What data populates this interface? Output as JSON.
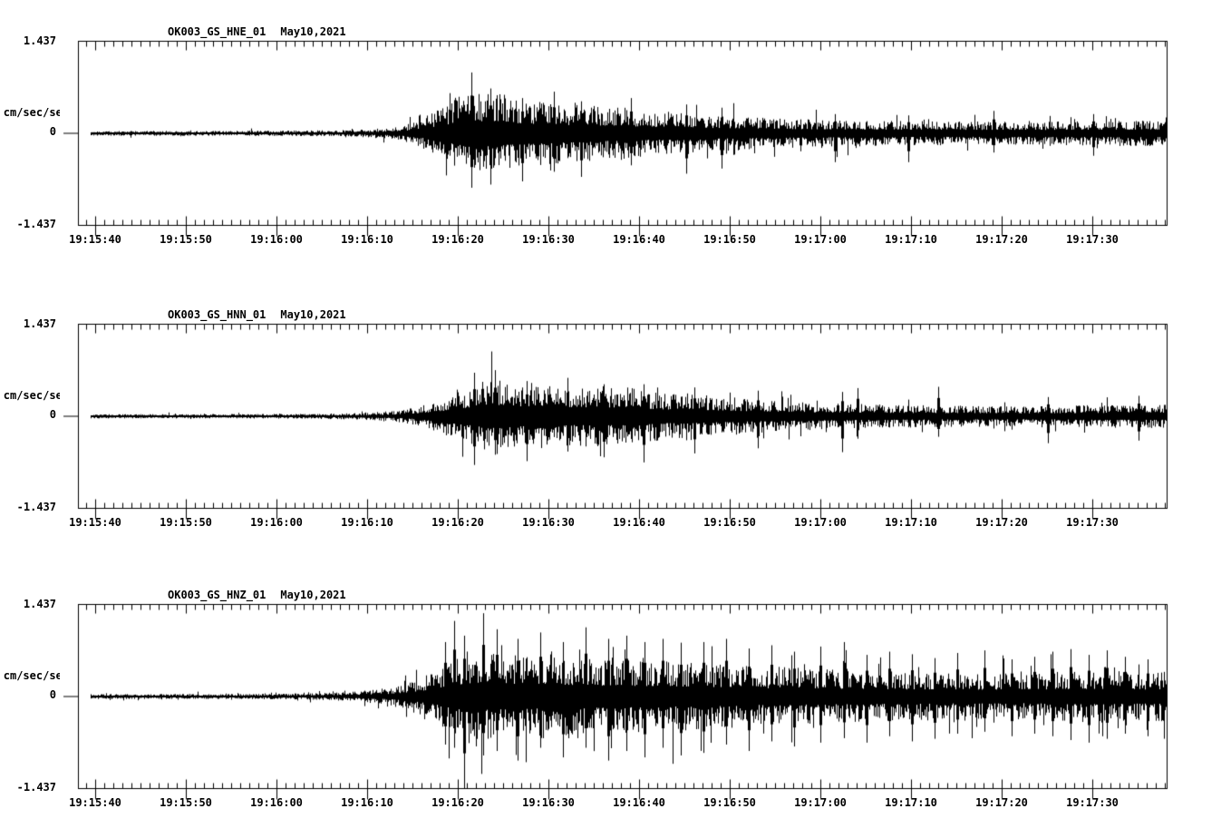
{
  "page": {
    "background": "#ffffff",
    "trace_color": "#000000"
  },
  "chart_data": [
    {
      "type": "line",
      "channel": "OK003_GS_HNE_01",
      "date": "May10,2021",
      "ylabel": "cm/sec/sec",
      "ylim": [
        -1.437,
        1.437
      ],
      "ytick_labels": {
        "top": "1.437",
        "zero": "0",
        "bottom": "-1.437"
      },
      "layout": {
        "grid": false,
        "minor_tick_interval_sec": 1,
        "major_tick_interval_sec": 10,
        "duration_sec": 120.1
      },
      "x_ticks": [
        {
          "sec": 1.9,
          "label": "19:15:40"
        },
        {
          "sec": 11.9,
          "label": "19:15:50"
        },
        {
          "sec": 21.9,
          "label": "19:16:00"
        },
        {
          "sec": 31.9,
          "label": "19:16:10"
        },
        {
          "sec": 41.9,
          "label": "19:16:20"
        },
        {
          "sec": 51.9,
          "label": "19:16:30"
        },
        {
          "sec": 61.9,
          "label": "19:16:40"
        },
        {
          "sec": 71.9,
          "label": "19:16:50"
        },
        {
          "sec": 81.9,
          "label": "19:17:00"
        },
        {
          "sec": 91.9,
          "label": "19:17:10"
        },
        {
          "sec": 101.9,
          "label": "19:17:20"
        },
        {
          "sec": 111.9,
          "label": "19:17:30"
        }
      ],
      "trace": {
        "start_sec": 1.4,
        "seed": 101,
        "spikiness": 0.045,
        "envelope": [
          [
            1.4,
            0.035
          ],
          [
            15,
            0.035
          ],
          [
            25,
            0.04
          ],
          [
            29,
            0.045
          ],
          [
            32,
            0.06
          ],
          [
            34,
            0.08
          ],
          [
            36,
            0.12
          ],
          [
            38,
            0.22
          ],
          [
            40,
            0.35
          ],
          [
            41.5,
            0.5
          ],
          [
            43,
            0.62
          ],
          [
            44.5,
            0.55
          ],
          [
            46,
            0.6
          ],
          [
            48,
            0.5
          ],
          [
            50,
            0.45
          ],
          [
            52,
            0.48
          ],
          [
            54,
            0.4
          ],
          [
            56,
            0.42
          ],
          [
            58,
            0.36
          ],
          [
            60,
            0.38
          ],
          [
            62,
            0.32
          ],
          [
            64,
            0.3
          ],
          [
            66,
            0.32
          ],
          [
            68,
            0.28
          ],
          [
            70,
            0.26
          ],
          [
            73,
            0.24
          ],
          [
            76,
            0.22
          ],
          [
            80,
            0.2
          ],
          [
            85,
            0.19
          ],
          [
            90,
            0.18
          ],
          [
            95,
            0.17
          ],
          [
            100,
            0.17
          ],
          [
            105,
            0.16
          ],
          [
            110,
            0.17
          ],
          [
            115,
            0.18
          ],
          [
            120,
            0.18
          ]
        ],
        "spikes": [
          [
            43.4,
            0.95,
            0.85
          ],
          [
            45.5,
            0.7,
            0.8
          ],
          [
            49,
            0.55,
            0.75
          ],
          [
            52.5,
            0.65,
            0.6
          ],
          [
            55.5,
            0.5,
            0.68
          ],
          [
            61,
            0.55,
            0.5
          ],
          [
            67.1,
            0.45,
            0.63
          ],
          [
            71,
            0.4,
            0.55
          ],
          [
            83.5,
            0.3,
            0.45
          ],
          [
            91.6,
            0.28,
            0.45
          ],
          [
            101,
            0.35,
            0.3
          ],
          [
            112,
            0.3,
            0.35
          ]
        ]
      }
    },
    {
      "type": "line",
      "channel": "OK003_GS_HNN_01",
      "date": "May10,2021",
      "ylabel": "cm/sec/sec",
      "ylim": [
        -1.437,
        1.437
      ],
      "ytick_labels": {
        "top": "1.437",
        "zero": "0",
        "bottom": "-1.437"
      },
      "layout": {
        "grid": false,
        "minor_tick_interval_sec": 1,
        "major_tick_interval_sec": 10,
        "duration_sec": 120.1
      },
      "x_ticks": [
        {
          "sec": 1.9,
          "label": "19:15:40"
        },
        {
          "sec": 11.9,
          "label": "19:15:50"
        },
        {
          "sec": 21.9,
          "label": "19:16:00"
        },
        {
          "sec": 31.9,
          "label": "19:16:10"
        },
        {
          "sec": 41.9,
          "label": "19:16:20"
        },
        {
          "sec": 51.9,
          "label": "19:16:30"
        },
        {
          "sec": 61.9,
          "label": "19:16:40"
        },
        {
          "sec": 71.9,
          "label": "19:16:50"
        },
        {
          "sec": 81.9,
          "label": "19:17:00"
        },
        {
          "sec": 91.9,
          "label": "19:17:10"
        },
        {
          "sec": 101.9,
          "label": "19:17:20"
        },
        {
          "sec": 111.9,
          "label": "19:17:30"
        }
      ],
      "trace": {
        "start_sec": 1.4,
        "seed": 202,
        "spikiness": 0.045,
        "envelope": [
          [
            1.4,
            0.03
          ],
          [
            15,
            0.03
          ],
          [
            25,
            0.035
          ],
          [
            30,
            0.045
          ],
          [
            33,
            0.06
          ],
          [
            35,
            0.08
          ],
          [
            37,
            0.12
          ],
          [
            39,
            0.2
          ],
          [
            41,
            0.3
          ],
          [
            43,
            0.42
          ],
          [
            45,
            0.52
          ],
          [
            47,
            0.55
          ],
          [
            49,
            0.48
          ],
          [
            51,
            0.52
          ],
          [
            53,
            0.45
          ],
          [
            55,
            0.42
          ],
          [
            57,
            0.45
          ],
          [
            59,
            0.4
          ],
          [
            61,
            0.42
          ],
          [
            63,
            0.36
          ],
          [
            65,
            0.33
          ],
          [
            67,
            0.36
          ],
          [
            69,
            0.3
          ],
          [
            71,
            0.28
          ],
          [
            74,
            0.25
          ],
          [
            77,
            0.22
          ],
          [
            80,
            0.2
          ],
          [
            84,
            0.18
          ],
          [
            88,
            0.17
          ],
          [
            92,
            0.16
          ],
          [
            96,
            0.15
          ],
          [
            100,
            0.15
          ],
          [
            104,
            0.14
          ],
          [
            108,
            0.15
          ],
          [
            112,
            0.16
          ],
          [
            116,
            0.17
          ],
          [
            120,
            0.17
          ]
        ],
        "spikes": [
          [
            43.7,
            0.68,
            0.76
          ],
          [
            46,
            0.72,
            0.6
          ],
          [
            49.5,
            0.55,
            0.7
          ],
          [
            54,
            0.6,
            0.55
          ],
          [
            58,
            0.5,
            0.64
          ],
          [
            62.4,
            0.5,
            0.72
          ],
          [
            68,
            0.45,
            0.58
          ],
          [
            75,
            0.4,
            0.5
          ],
          [
            84.3,
            0.38,
            0.56
          ],
          [
            86,
            0.44,
            0.35
          ],
          [
            94.9,
            0.46,
            0.32
          ],
          [
            107,
            0.3,
            0.42
          ],
          [
            117,
            0.32,
            0.38
          ]
        ]
      }
    },
    {
      "type": "line",
      "channel": "OK003_GS_HNZ_01",
      "date": "May10,2021",
      "ylabel": "cm/sec/sec",
      "ylim": [
        -1.437,
        1.437
      ],
      "ytick_labels": {
        "top": "1.437",
        "zero": "0",
        "bottom": "-1.437"
      },
      "layout": {
        "grid": false,
        "minor_tick_interval_sec": 1,
        "major_tick_interval_sec": 10,
        "duration_sec": 120.1
      },
      "x_ticks": [
        {
          "sec": 1.9,
          "label": "19:15:40"
        },
        {
          "sec": 11.9,
          "label": "19:15:50"
        },
        {
          "sec": 21.9,
          "label": "19:16:00"
        },
        {
          "sec": 31.9,
          "label": "19:16:10"
        },
        {
          "sec": 41.9,
          "label": "19:16:20"
        },
        {
          "sec": 51.9,
          "label": "19:16:30"
        },
        {
          "sec": 61.9,
          "label": "19:16:40"
        },
        {
          "sec": 71.9,
          "label": "19:16:50"
        },
        {
          "sec": 81.9,
          "label": "19:17:00"
        },
        {
          "sec": 91.9,
          "label": "19:17:10"
        },
        {
          "sec": 101.9,
          "label": "19:17:20"
        },
        {
          "sec": 111.9,
          "label": "19:17:30"
        }
      ],
      "trace": {
        "start_sec": 1.4,
        "seed": 303,
        "spikiness": 0.09,
        "envelope": [
          [
            1.4,
            0.035
          ],
          [
            15,
            0.035
          ],
          [
            22,
            0.04
          ],
          [
            27,
            0.05
          ],
          [
            30,
            0.07
          ],
          [
            32,
            0.09
          ],
          [
            34,
            0.12
          ],
          [
            36,
            0.18
          ],
          [
            38,
            0.28
          ],
          [
            40,
            0.42
          ],
          [
            42,
            0.58
          ],
          [
            44,
            0.65
          ],
          [
            46,
            0.6
          ],
          [
            48,
            0.62
          ],
          [
            50,
            0.58
          ],
          [
            52,
            0.6
          ],
          [
            54,
            0.55
          ],
          [
            56,
            0.58
          ],
          [
            58,
            0.52
          ],
          [
            60,
            0.55
          ],
          [
            62,
            0.5
          ],
          [
            64,
            0.52
          ],
          [
            66,
            0.48
          ],
          [
            68,
            0.5
          ],
          [
            70,
            0.45
          ],
          [
            72,
            0.46
          ],
          [
            74,
            0.42
          ],
          [
            76,
            0.4
          ],
          [
            78,
            0.42
          ],
          [
            80,
            0.38
          ],
          [
            82,
            0.4
          ],
          [
            84,
            0.37
          ],
          [
            86,
            0.38
          ],
          [
            88,
            0.35
          ],
          [
            90,
            0.36
          ],
          [
            92,
            0.34
          ],
          [
            94,
            0.35
          ],
          [
            96,
            0.33
          ],
          [
            98,
            0.34
          ],
          [
            100,
            0.33
          ],
          [
            102,
            0.34
          ],
          [
            104,
            0.32
          ],
          [
            106,
            0.33
          ],
          [
            108,
            0.35
          ],
          [
            110,
            0.37
          ],
          [
            112,
            0.35
          ],
          [
            114,
            0.37
          ],
          [
            116,
            0.35
          ],
          [
            118,
            0.34
          ],
          [
            120,
            0.36
          ]
        ],
        "spikes": [
          [
            40.5,
            0.85,
            0.75
          ],
          [
            41.5,
            1.18,
            0.8
          ],
          [
            42.6,
            0.95,
            1.43
          ],
          [
            44.7,
            1.3,
            0.92
          ],
          [
            46.2,
            1.05,
            0.85
          ],
          [
            48.5,
            0.9,
            1.0
          ],
          [
            51,
            1.0,
            0.8
          ],
          [
            53.5,
            0.85,
            0.95
          ],
          [
            56,
            1.08,
            0.8
          ],
          [
            58.5,
            0.9,
            1.0
          ],
          [
            60.5,
            0.95,
            0.85
          ],
          [
            62.5,
            0.85,
            0.95
          ],
          [
            64.5,
            0.9,
            0.8
          ],
          [
            66.5,
            0.8,
            0.92
          ],
          [
            69,
            0.85,
            0.88
          ],
          [
            71.5,
            0.9,
            0.75
          ],
          [
            74,
            0.75,
            0.85
          ],
          [
            76.5,
            0.8,
            0.7
          ],
          [
            79,
            0.7,
            0.78
          ],
          [
            81.9,
            0.78,
            0.72
          ],
          [
            84.5,
            0.85,
            0.65
          ],
          [
            87,
            0.65,
            0.72
          ],
          [
            89.5,
            0.7,
            0.62
          ],
          [
            92,
            0.66,
            0.7
          ],
          [
            94.5,
            0.6,
            0.66
          ],
          [
            97,
            0.68,
            0.58
          ],
          [
            100,
            0.72,
            0.55
          ],
          [
            103,
            0.58,
            0.62
          ],
          [
            105.5,
            0.62,
            0.58
          ],
          [
            107.5,
            0.7,
            0.62
          ],
          [
            109.5,
            0.74,
            0.68
          ],
          [
            111.5,
            0.65,
            0.72
          ],
          [
            113.5,
            0.72,
            0.66
          ],
          [
            115.5,
            0.62,
            0.58
          ],
          [
            118,
            0.58,
            0.62
          ]
        ]
      }
    }
  ]
}
